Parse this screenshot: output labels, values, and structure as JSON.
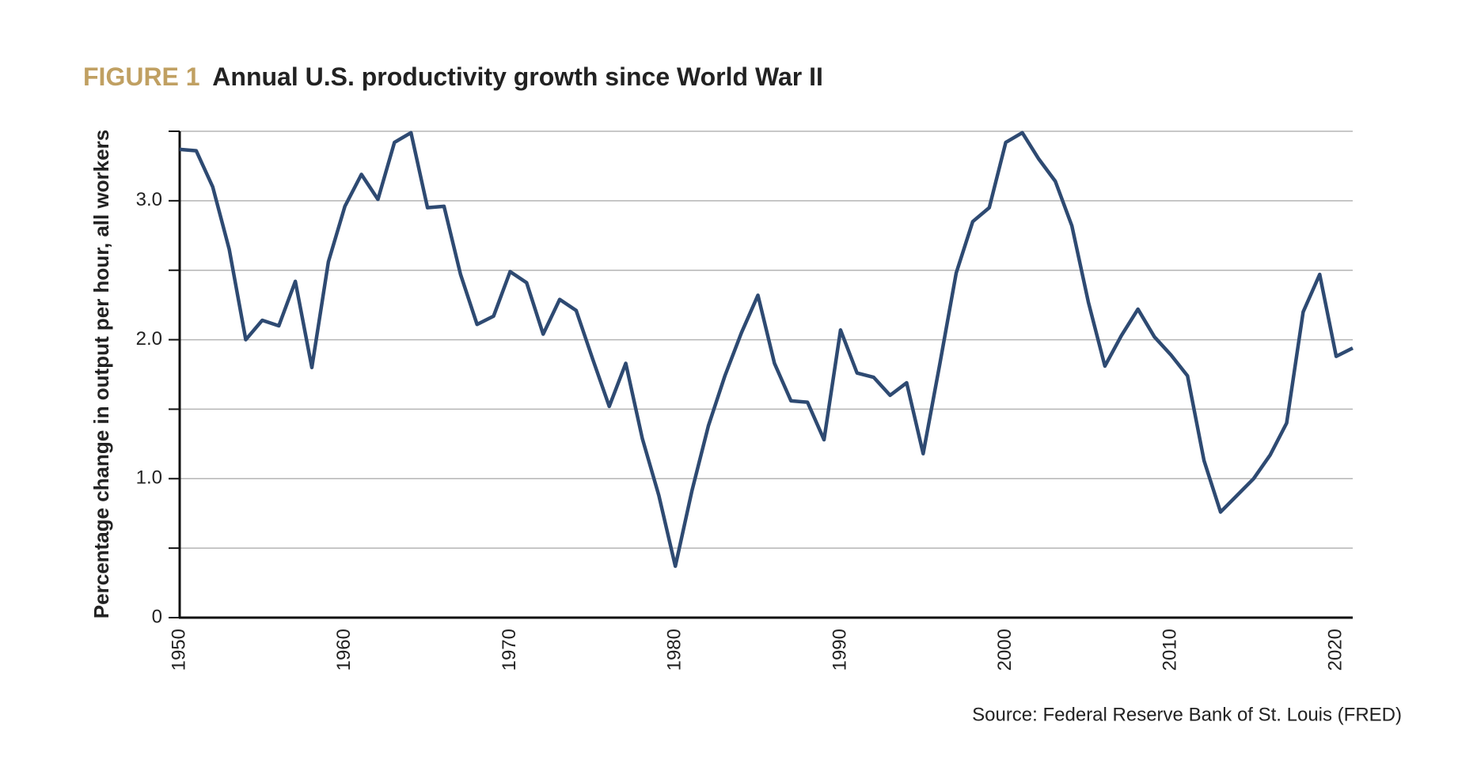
{
  "chart_data": {
    "type": "line",
    "figure_label": "FIGURE 1",
    "title": "Annual U.S. productivity growth since World War II",
    "y_label": "Percentage change in output per hour, all workers",
    "source": "Source: Federal Reserve Bank of St. Louis (FRED)",
    "x": [
      1950,
      1951,
      1952,
      1953,
      1954,
      1955,
      1956,
      1957,
      1958,
      1959,
      1960,
      1961,
      1962,
      1963,
      1964,
      1965,
      1966,
      1967,
      1968,
      1969,
      1970,
      1971,
      1972,
      1973,
      1974,
      1975,
      1976,
      1977,
      1978,
      1979,
      1980,
      1981,
      1982,
      1983,
      1984,
      1985,
      1986,
      1987,
      1988,
      1989,
      1990,
      1991,
      1992,
      1993,
      1994,
      1995,
      1996,
      1997,
      1998,
      1999,
      2000,
      2001,
      2002,
      2003,
      2004,
      2005,
      2006,
      2007,
      2008,
      2009,
      2010,
      2011,
      2012,
      2013,
      2014,
      2015,
      2016,
      2017,
      2018,
      2019,
      2020,
      2021
    ],
    "series": [
      {
        "name": "Productivity growth",
        "color": "#2e4a72",
        "values": [
          3.37,
          3.36,
          3.1,
          2.65,
          2.0,
          2.14,
          2.1,
          2.42,
          1.8,
          2.56,
          2.96,
          3.19,
          3.01,
          3.42,
          3.49,
          2.95,
          2.96,
          2.47,
          2.11,
          2.17,
          2.49,
          2.41,
          2.04,
          2.29,
          2.21,
          1.86,
          1.52,
          1.83,
          1.29,
          0.88,
          0.37,
          0.91,
          1.38,
          1.74,
          2.05,
          2.32,
          1.83,
          1.56,
          1.55,
          1.28,
          2.07,
          1.76,
          1.73,
          1.6,
          1.69,
          1.18,
          1.82,
          2.48,
          2.85,
          2.95,
          3.42,
          3.49,
          3.3,
          3.14,
          2.82,
          2.27,
          1.81,
          2.03,
          2.22,
          2.02,
          1.89,
          1.74,
          1.13,
          0.76,
          0.88,
          1.0,
          1.17,
          1.4,
          2.2,
          2.47,
          1.88,
          1.94
        ]
      }
    ],
    "xlim": [
      1950,
      2021
    ],
    "xticks": [
      1950,
      1960,
      1970,
      1980,
      1990,
      2000,
      2010,
      2020
    ],
    "ylim": [
      0,
      3.5
    ],
    "yticks": [
      0,
      {
        "value": 1,
        "label": "1.0"
      },
      {
        "value": 2,
        "label": "2.0"
      },
      {
        "value": 3,
        "label": "3.0"
      }
    ],
    "yminor": [
      0.5,
      1.5,
      2.5,
      3.5
    ],
    "grid": true
  }
}
